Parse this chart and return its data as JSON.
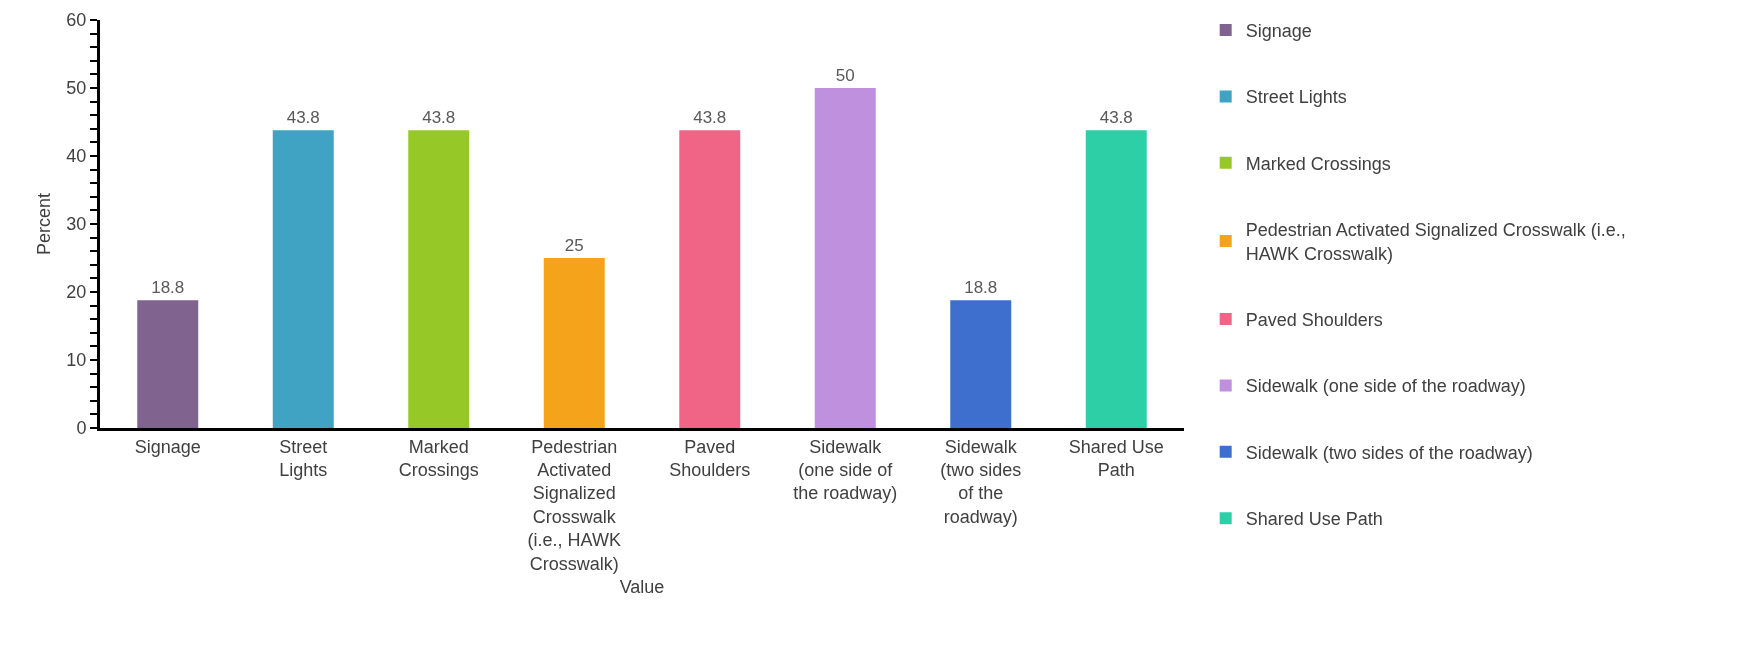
{
  "chart_data": {
    "type": "bar",
    "xlabel": "Value",
    "ylabel": "Percent",
    "categories": [
      "Signage",
      "Street Lights",
      "Marked Crossings",
      "Pedestrian Activated Signalized Crosswalk (i.e., HAWK Crosswalk)",
      "Paved Shoulders",
      "Sidewalk (one side of the roadway)",
      "Sidewalk (two sides of the roadway)",
      "Shared Use Path"
    ],
    "series": [
      {
        "name": "Signage",
        "color": "#80638f",
        "values": [
          18.8,
          null,
          null,
          null,
          null,
          null,
          null,
          null
        ]
      },
      {
        "name": "Street Lights",
        "color": "#41a3c4",
        "values": [
          null,
          43.8,
          null,
          null,
          null,
          null,
          null,
          null
        ]
      },
      {
        "name": "Marked Crossings",
        "color": "#96c928",
        "values": [
          null,
          null,
          43.8,
          null,
          null,
          null,
          null,
          null
        ]
      },
      {
        "name": "Pedestrian Activated Signalized Crosswalk (i.e., HAWK Crosswalk)",
        "color": "#f5a31a",
        "values": [
          null,
          null,
          null,
          25,
          null,
          null,
          null,
          null
        ]
      },
      {
        "name": "Paved Shoulders",
        "color": "#f06585",
        "values": [
          null,
          null,
          null,
          null,
          43.8,
          null,
          null,
          null
        ]
      },
      {
        "name": "Sidewalk (one side of the roadway)",
        "color": "#bf90dd",
        "values": [
          null,
          null,
          null,
          null,
          null,
          50,
          null,
          null
        ]
      },
      {
        "name": "Sidewalk (two sides of the roadway)",
        "color": "#3e6fcf",
        "values": [
          null,
          null,
          null,
          null,
          null,
          null,
          18.8,
          null
        ]
      },
      {
        "name": "Shared Use Path",
        "color": "#2dcfa6",
        "values": [
          null,
          null,
          null,
          null,
          null,
          null,
          null,
          43.8
        ]
      }
    ],
    "ylim": [
      0,
      60
    ],
    "yticks": [
      0,
      {
        "value": 2,
        "label": null
      },
      {
        "value": 4,
        "label": null
      },
      {
        "value": 6,
        "label": null
      },
      {
        "value": 8,
        "label": null
      },
      10,
      {
        "value": 12,
        "label": null
      },
      {
        "value": 14,
        "label": null
      },
      {
        "value": 16,
        "label": null
      },
      {
        "value": 18,
        "label": null
      },
      20,
      {
        "value": 22,
        "label": null
      },
      {
        "value": 24,
        "label": null
      },
      {
        "value": 26,
        "label": null
      },
      {
        "value": 28,
        "label": null
      },
      30,
      {
        "value": 32,
        "label": null
      },
      {
        "value": 34,
        "label": null
      },
      {
        "value": 36,
        "label": null
      },
      {
        "value": 38,
        "label": null
      },
      40,
      {
        "value": 42,
        "label": null
      },
      {
        "value": 44,
        "label": null
      },
      {
        "value": 46,
        "label": null
      },
      {
        "value": 48,
        "label": null
      },
      50,
      {
        "value": 52,
        "label": null
      },
      {
        "value": 54,
        "label": null
      },
      {
        "value": 56,
        "label": null
      },
      {
        "value": 58,
        "label": null
      },
      60
    ],
    "data_labels": true,
    "grid": false,
    "legend": "right"
  }
}
